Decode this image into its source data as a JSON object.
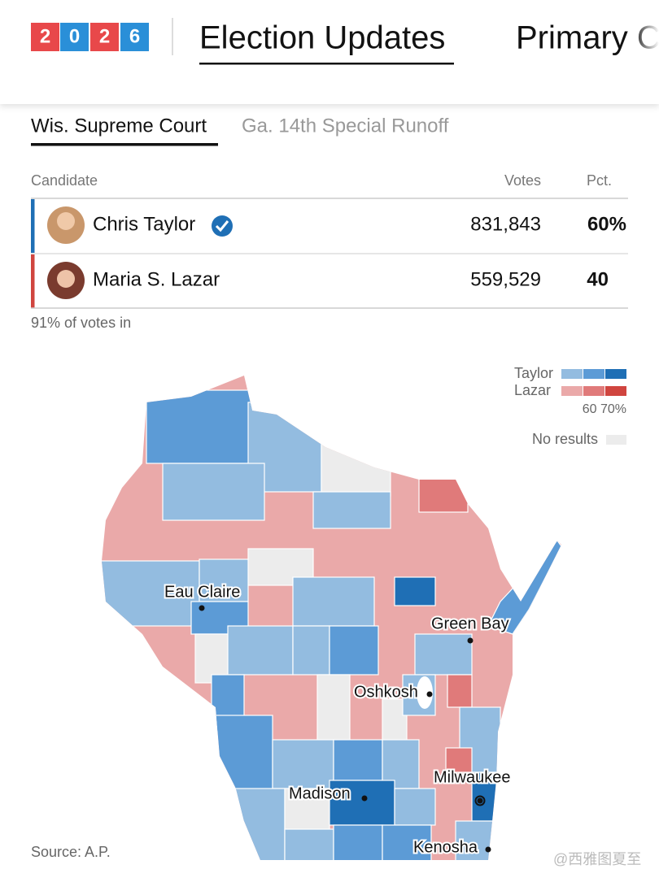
{
  "header": {
    "logo_digits": [
      "2",
      "0",
      "2",
      "6"
    ],
    "nav": [
      "Election Updates",
      "Primary C"
    ]
  },
  "tabs": [
    "Wis. Supreme Court",
    "Ga. 14th Special Runoff"
  ],
  "table": {
    "columns": [
      "Candidate",
      "Votes",
      "Pct."
    ],
    "rows": [
      [
        "Chris Taylor",
        "831,843",
        "60%"
      ],
      [
        "Maria S. Lazar",
        "559,529",
        "40"
      ]
    ]
  },
  "reporting": "91% of votes in",
  "legend": {
    "series": [
      "Taylor",
      "Lazar"
    ],
    "scale": "60 70%",
    "no_results": "No results"
  },
  "map": {
    "cities": [
      "Eau Claire",
      "Green Bay",
      "Oshkosh",
      "Madison",
      "Milwaukee",
      "Kenosha"
    ]
  },
  "source": "Source: A.P.",
  "watermark": "@西雅图夏至"
}
